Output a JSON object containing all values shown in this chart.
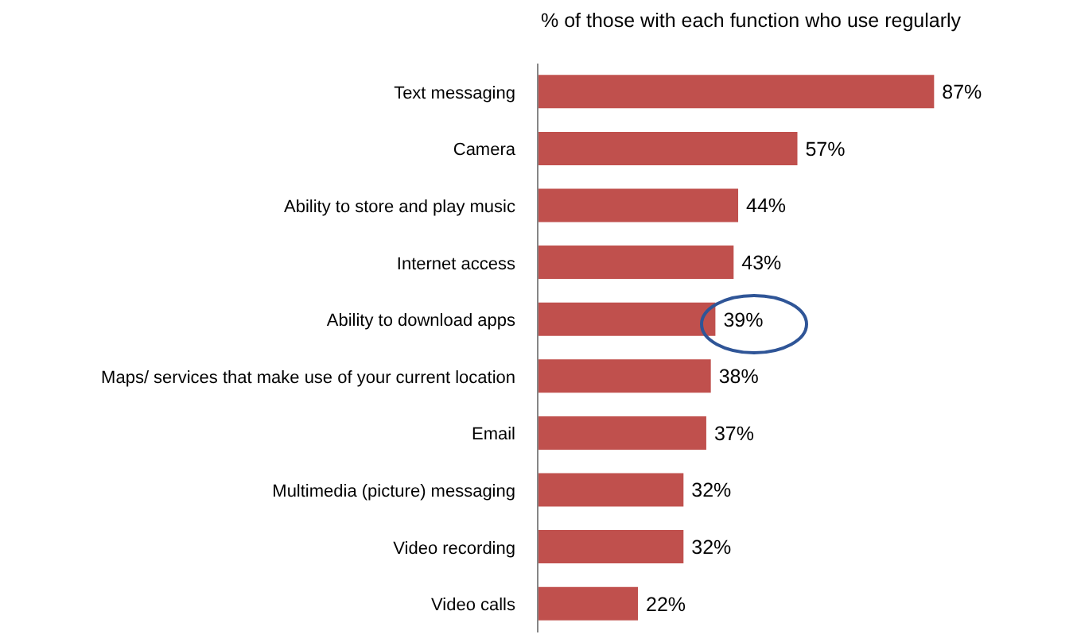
{
  "chart_data": {
    "type": "bar",
    "orientation": "horizontal",
    "title": "% of those with each function who use regularly",
    "categories": [
      "Text messaging",
      "Camera",
      "Ability to store and play music",
      "Internet access",
      "Ability to download  apps",
      "Maps/ services that make use of your current location",
      "Email",
      "Multimedia (picture) messaging",
      "Video recording",
      "Video calls"
    ],
    "values": [
      87,
      57,
      44,
      43,
      39,
      38,
      37,
      32,
      32,
      22
    ],
    "value_labels": [
      "87%",
      "57%",
      "44%",
      "43%",
      "39%",
      "38%",
      "37%",
      "32%",
      "32%",
      "22%"
    ],
    "color": "#c0504d"
  }
}
